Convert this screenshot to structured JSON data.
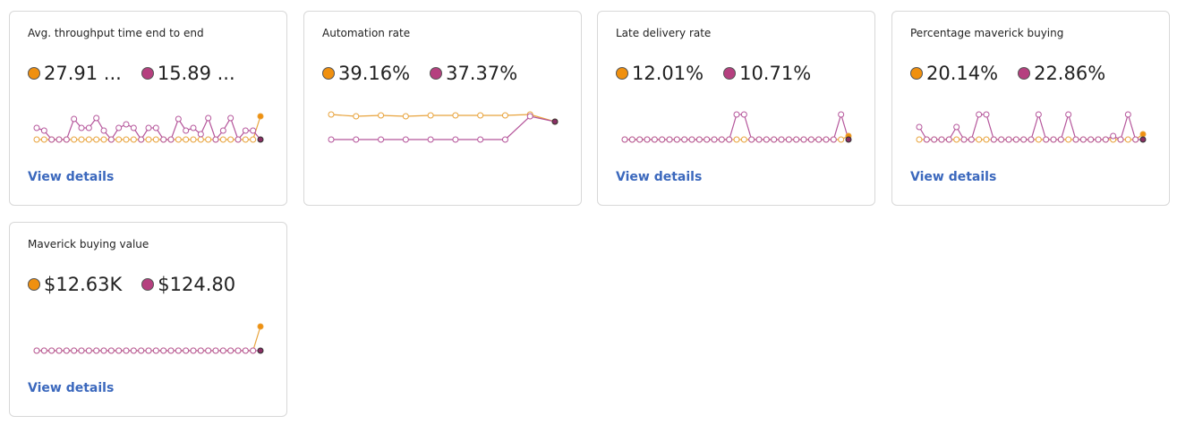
{
  "cards": [
    {
      "title": "Avg. throughput time end to end",
      "metrics": [
        {
          "text": "27.91 ...",
          "color": "#f0900f"
        },
        {
          "text": "15.89 ...",
          "color": "#b5407f"
        }
      ],
      "link": "View details",
      "sparkline": {
        "series": [
          {
            "color": "#e8a33c",
            "values": [
              0,
              0,
              0,
              0,
              0,
              0,
              0,
              0,
              0,
              0,
              0,
              0,
              0,
              0,
              0,
              0,
              0,
              0,
              0,
              0,
              0,
              0,
              0,
              0,
              0,
              0,
              0,
              0,
              0,
              0,
              26
            ]
          },
          {
            "color": "#b5569b",
            "values": [
              13,
              10,
              0,
              0,
              0,
              23,
              13,
              13,
              24,
              10,
              0,
              13,
              17,
              13,
              0,
              13,
              13,
              0,
              0,
              23,
              10,
              13,
              6,
              24,
              0,
              10,
              24,
              0,
              10,
              10,
              0
            ]
          }
        ]
      }
    },
    {
      "title": "Automation rate",
      "metrics": [
        {
          "text": "39.16%",
          "color": "#f0900f"
        },
        {
          "text": "37.37%",
          "color": "#b5407f"
        }
      ],
      "link": null,
      "sparkline": {
        "series": [
          {
            "color": "#e8a33c",
            "values": [
              28,
              26,
              27,
              26,
              27,
              27,
              27,
              27,
              28,
              20
            ]
          },
          {
            "color": "#b5569b",
            "values": [
              0,
              0,
              0,
              0,
              0,
              0,
              0,
              0,
              26,
              20
            ]
          }
        ]
      }
    },
    {
      "title": "Late delivery rate",
      "metrics": [
        {
          "text": "12.01%",
          "color": "#f0900f"
        },
        {
          "text": "10.71%",
          "color": "#b5407f"
        }
      ],
      "link": "View details",
      "sparkline": {
        "series": [
          {
            "color": "#e8a33c",
            "values": [
              0,
              0,
              0,
              0,
              0,
              0,
              0,
              0,
              0,
              0,
              0,
              0,
              0,
              0,
              0,
              0,
              0,
              0,
              0,
              0,
              0,
              0,
              0,
              0,
              0,
              0,
              0,
              0,
              0,
              0,
              4
            ]
          },
          {
            "color": "#b5569b",
            "values": [
              0,
              0,
              0,
              0,
              0,
              0,
              0,
              0,
              0,
              0,
              0,
              0,
              0,
              0,
              0,
              28,
              28,
              0,
              0,
              0,
              0,
              0,
              0,
              0,
              0,
              0,
              0,
              0,
              0,
              28,
              0
            ]
          }
        ]
      }
    },
    {
      "title": "Percentage maverick buying",
      "metrics": [
        {
          "text": "20.14%",
          "color": "#f0900f"
        },
        {
          "text": "22.86%",
          "color": "#b5407f"
        }
      ],
      "link": "View details",
      "sparkline": {
        "series": [
          {
            "color": "#e8a33c",
            "values": [
              0,
              0,
              0,
              0,
              0,
              0,
              0,
              0,
              0,
              0,
              0,
              0,
              0,
              0,
              0,
              0,
              0,
              0,
              0,
              0,
              0,
              0,
              0,
              0,
              0,
              0,
              0,
              0,
              0,
              0,
              6
            ]
          },
          {
            "color": "#b5569b",
            "values": [
              14,
              0,
              0,
              0,
              0,
              14,
              0,
              0,
              28,
              28,
              0,
              0,
              0,
              0,
              0,
              0,
              28,
              0,
              0,
              0,
              28,
              0,
              0,
              0,
              0,
              0,
              4,
              0,
              28,
              0,
              0
            ]
          }
        ]
      }
    },
    {
      "title": "Maverick buying value",
      "metrics": [
        {
          "text": "$12.63K",
          "color": "#f0900f"
        },
        {
          "text": "$124.80",
          "color": "#b5407f"
        }
      ],
      "link": "View details",
      "sparkline": {
        "series": [
          {
            "color": "#e8a33c",
            "values": [
              0,
              0,
              0,
              0,
              0,
              0,
              0,
              0,
              0,
              0,
              0,
              0,
              0,
              0,
              0,
              0,
              0,
              0,
              0,
              0,
              0,
              0,
              0,
              0,
              0,
              0,
              0,
              0,
              0,
              0,
              27
            ]
          },
          {
            "color": "#b5569b",
            "values": [
              0,
              0,
              0,
              0,
              0,
              0,
              0,
              0,
              0,
              0,
              0,
              0,
              0,
              0,
              0,
              0,
              0,
              0,
              0,
              0,
              0,
              0,
              0,
              0,
              0,
              0,
              0,
              0,
              0,
              0,
              0
            ]
          }
        ]
      }
    }
  ]
}
